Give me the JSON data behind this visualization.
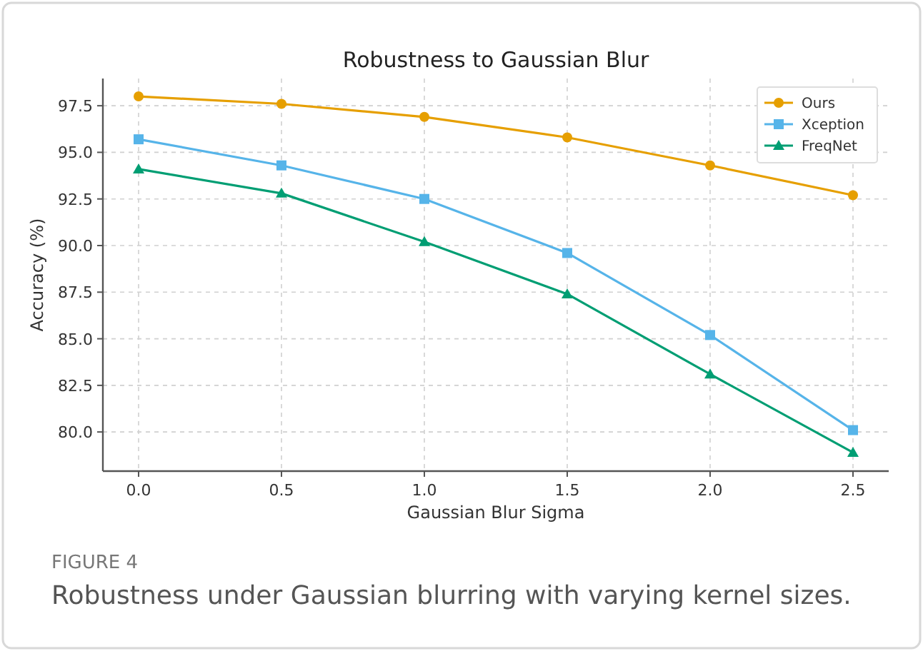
{
  "chart_data": {
    "type": "line",
    "title": "Robustness to Gaussian Blur",
    "xlabel": "Gaussian Blur Sigma",
    "ylabel": "Accuracy (%)",
    "x": [
      0.0,
      0.5,
      1.0,
      1.5,
      2.0,
      2.5
    ],
    "series": [
      {
        "name": "Ours",
        "color": "#e69f00",
        "marker": "circle",
        "values": [
          98.0,
          97.6,
          96.9,
          95.8,
          94.3,
          92.7
        ]
      },
      {
        "name": "Xception",
        "color": "#56b4e9",
        "marker": "square",
        "values": [
          95.7,
          94.3,
          92.5,
          89.6,
          85.2,
          80.1
        ]
      },
      {
        "name": "FreqNet",
        "color": "#009e73",
        "marker": "triangle",
        "values": [
          94.1,
          92.8,
          90.2,
          87.4,
          83.1,
          78.9
        ]
      }
    ],
    "xlim": [
      -0.125,
      2.625
    ],
    "xticks": [
      {
        "value": 0,
        "label": "0.0"
      },
      0.5,
      {
        "value": 1,
        "label": "1.0"
      },
      1.5,
      {
        "value": 2,
        "label": "2.0"
      },
      2.5
    ],
    "ylim": [
      77.9,
      98.96
    ],
    "yticks": [
      {
        "value": 80,
        "label": "80.0"
      },
      82.5,
      {
        "value": 85,
        "label": "85.0"
      },
      87.5,
      {
        "value": 90,
        "label": "90.0"
      },
      92.5,
      {
        "value": 95,
        "label": "95.0"
      },
      97.5
    ],
    "grid": true,
    "legend": "top right",
    "line_style": "solid",
    "annotations": [
      "FIGURE 4",
      "Robustness under Gaussian blurring with varying kernel sizes."
    ]
  }
}
